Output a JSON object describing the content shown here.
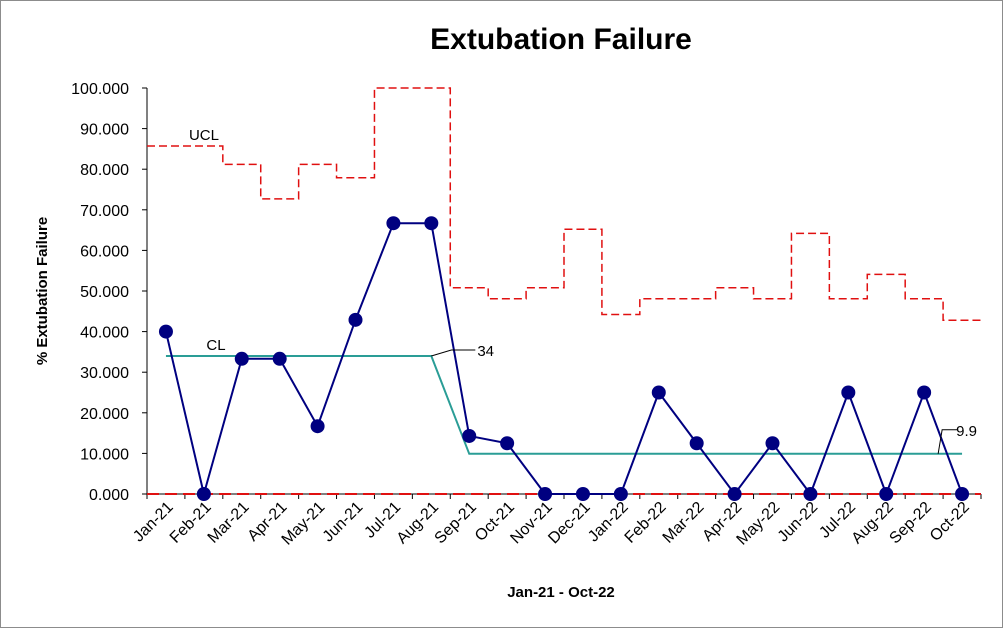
{
  "chart_data": {
    "type": "line",
    "title": "Extubation Failure",
    "xlabel": "Jan-21 - Oct-22",
    "ylabel": "% Extubation Failure",
    "ylim": [
      0,
      100
    ],
    "y_ticks": [
      "0.000",
      "10.000",
      "20.000",
      "30.000",
      "40.000",
      "50.000",
      "60.000",
      "70.000",
      "80.000",
      "90.000",
      "100.000"
    ],
    "categories": [
      "Jan-21",
      "Feb-21",
      "Mar-21",
      "Apr-21",
      "May-21",
      "Jun-21",
      "Jul-21",
      "Aug-21",
      "Sep-21",
      "Oct-21",
      "Nov-21",
      "Dec-21",
      "Jan-22",
      "Feb-22",
      "Mar-22",
      "Apr-22",
      "May-22",
      "Jun-22",
      "Jul-22",
      "Aug-22",
      "Sep-22",
      "Oct-22"
    ],
    "series": [
      {
        "values": [
          40,
          0,
          33.3,
          33.3,
          16.7,
          42.9,
          66.7,
          66.7,
          14.3,
          12.5,
          0,
          0,
          0,
          25,
          12.5,
          0,
          12.5,
          0,
          25,
          0,
          25,
          0
        ],
        "color": "#000080"
      }
    ],
    "cl": {
      "label": "CL",
      "values": [
        34,
        34,
        34,
        34,
        34,
        34,
        34,
        34,
        9.9,
        9.9,
        9.9,
        9.9,
        9.9,
        9.9,
        9.9,
        9.9,
        9.9,
        9.9,
        9.9,
        9.9,
        9.9,
        9.9
      ],
      "color": "#2a9d96"
    },
    "ucl": {
      "label": "UCL",
      "values": [
        85.7,
        85.7,
        81.2,
        72.7,
        81.2,
        77.9,
        100,
        100,
        50.8,
        48.1,
        50.8,
        65.2,
        44.2,
        48.1,
        48.1,
        50.8,
        48.1,
        64.2,
        48.1,
        54.1,
        48.1,
        42.8
      ],
      "color": "#e01010"
    },
    "lcl": {
      "values": [
        0,
        0,
        0,
        0,
        0,
        0,
        0,
        0,
        0,
        0,
        0,
        0,
        0,
        0,
        0,
        0,
        0,
        0,
        0,
        0,
        0,
        0
      ],
      "color": "#e01010"
    },
    "annotations": [
      {
        "text": "34"
      },
      {
        "text": "9.9"
      }
    ],
    "grid": false,
    "legend": "none"
  }
}
